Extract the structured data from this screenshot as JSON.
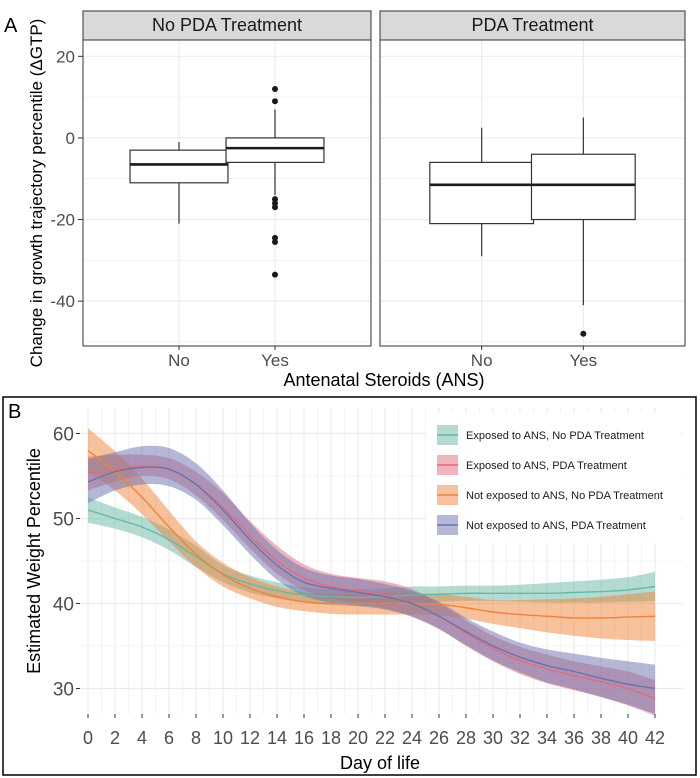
{
  "panelA": {
    "label": "A",
    "ylabel": "Change in growth trajectory percentile (ΔGTP)",
    "xlabel": "Antenatal Steroids (ANS)",
    "yticks": [
      -40,
      -20,
      0,
      20
    ],
    "ylim": [
      -51,
      24
    ],
    "facets": [
      {
        "title": "No PDA Treatment"
      },
      {
        "title": "PDA Treatment"
      }
    ]
  },
  "panelB": {
    "label": "B",
    "ylabel": "Estimated Weight Percentile",
    "xlabel": "Day of life",
    "legend_title": "",
    "legend_position": "top-right"
  },
  "colors": {
    "teal": "#67b8a5",
    "red": "#e06c7e",
    "orange": "#f0833a",
    "purple": "#6a72ad",
    "strip_bg": "#d9d9d9",
    "grid": "#ebebeb"
  },
  "chart_data": [
    {
      "type": "box",
      "title": "",
      "xlabel": "Antenatal Steroids (ANS)",
      "ylabel": "Change in growth trajectory percentile (ΔGTP)",
      "ylim": [
        -51,
        24
      ],
      "grid": true,
      "facets": [
        {
          "name": "No PDA Treatment",
          "categories": [
            "No",
            "Yes"
          ],
          "boxes": [
            {
              "min": -21,
              "q1": -11,
              "median": -6.5,
              "q3": -3,
              "max": -1,
              "outliers": []
            },
            {
              "min": -14,
              "q1": -6,
              "median": -2.5,
              "q3": 0,
              "max": 7,
              "outliers": [
                12,
                9,
                -15,
                -16,
                -17,
                -24.5,
                -25.5,
                -33.5
              ]
            }
          ]
        },
        {
          "name": "PDA Treatment",
          "categories": [
            "No",
            "Yes"
          ],
          "boxes": [
            {
              "min": -29,
              "q1": -21,
              "median": -11.5,
              "q3": -6,
              "max": 2.5,
              "outliers": []
            },
            {
              "min": -41,
              "q1": -20,
              "median": -11.5,
              "q3": -4,
              "max": 5,
              "outliers": [
                -48
              ]
            }
          ]
        }
      ]
    },
    {
      "type": "line",
      "title": "",
      "xlabel": "Day of life",
      "ylabel": "Estimated Weight Percentile",
      "xlim": [
        0,
        42
      ],
      "ylim": [
        27,
        63
      ],
      "xticks": [
        0,
        2,
        4,
        6,
        8,
        10,
        12,
        14,
        16,
        18,
        20,
        22,
        24,
        26,
        28,
        30,
        32,
        34,
        36,
        38,
        40,
        42
      ],
      "yticks": [
        30,
        40,
        50,
        60
      ],
      "grid": true,
      "legend": "top-right",
      "x": [
        0,
        2,
        4,
        6,
        8,
        10,
        12,
        14,
        16,
        18,
        20,
        22,
        24,
        26,
        28,
        30,
        32,
        34,
        36,
        38,
        40,
        42
      ],
      "series": [
        {
          "name": "Exposed to ANS, No PDA Treatment",
          "color": "#67b8a5",
          "values": [
            51,
            50,
            49,
            47.5,
            45.5,
            43.5,
            42.3,
            41.5,
            41,
            40.8,
            40.7,
            40.8,
            41,
            41.1,
            41.2,
            41.2,
            41.2,
            41.2,
            41.3,
            41.4,
            41.6,
            42
          ],
          "lower": [
            49.5,
            48.8,
            47.8,
            46.3,
            44.3,
            42.5,
            41.3,
            40.6,
            40.1,
            39.8,
            39.7,
            39.8,
            40,
            40.2,
            40.3,
            40.3,
            40.2,
            40.1,
            40.1,
            40.1,
            40.2,
            40.3
          ],
          "upper": [
            52.5,
            51.3,
            50.2,
            48.7,
            46.8,
            44.5,
            43.3,
            42.5,
            41.9,
            41.7,
            41.7,
            41.8,
            42,
            42,
            42.1,
            42.1,
            42.2,
            42.4,
            42.6,
            42.8,
            43.1,
            43.7
          ]
        },
        {
          "name": "Exposed to ANS, PDA Treatment",
          "color": "#e06c7e",
          "values": [
            55.3,
            55.8,
            56.2,
            55.8,
            54,
            51.3,
            48,
            45,
            43,
            42,
            41.5,
            41,
            40,
            38.5,
            36.5,
            34.7,
            33.3,
            32.3,
            31.5,
            30.8,
            30,
            28.8
          ],
          "lower": [
            53.3,
            54.3,
            55,
            54.6,
            52.7,
            49.8,
            46.5,
            43.5,
            41.6,
            40.6,
            40,
            39.4,
            38.4,
            37,
            35,
            33.2,
            31.7,
            30.6,
            29.8,
            29,
            28,
            26.8
          ],
          "upper": [
            57.3,
            57.5,
            57.5,
            57.1,
            55.5,
            53,
            49.7,
            46.8,
            44.6,
            43.5,
            43,
            42.6,
            41.7,
            40,
            38,
            36.2,
            34.9,
            34,
            33.2,
            32.6,
            32,
            31
          ]
        },
        {
          "name": "Not exposed to ANS, No PDA Treatment",
          "color": "#f0833a",
          "values": [
            58,
            55.5,
            52.5,
            49,
            45.8,
            43.4,
            41.8,
            40.8,
            40.2,
            40,
            40,
            40,
            40,
            39.9,
            39.5,
            39,
            38.7,
            38.5,
            38.3,
            38.3,
            38.4,
            38.5
          ],
          "lower": [
            55.5,
            53.3,
            50.5,
            47.3,
            44.3,
            42,
            40.6,
            39.6,
            39.1,
            38.8,
            38.7,
            38.7,
            38.7,
            38.6,
            38.2,
            37.6,
            37.1,
            36.6,
            36.2,
            35.9,
            35.7,
            35.6
          ],
          "upper": [
            60.6,
            57.9,
            54.7,
            50.9,
            47.3,
            44.8,
            43.1,
            42,
            41.3,
            41.1,
            41.2,
            41.3,
            41.2,
            41.1,
            40.8,
            40.4,
            40.4,
            40.5,
            40.6,
            40.8,
            41.1,
            41.4
          ]
        },
        {
          "name": "Not exposed to ANS, PDA Treatment",
          "color": "#6a72ad",
          "values": [
            54.3,
            55.5,
            56,
            55.8,
            54,
            51,
            47.5,
            44.5,
            42.5,
            41.8,
            41.3,
            40.8,
            40,
            38.5,
            36.7,
            35,
            33.7,
            32.7,
            32,
            31.2,
            30.5,
            30
          ],
          "lower": [
            51.8,
            53.3,
            54,
            53.8,
            52.2,
            49.2,
            45.8,
            42.8,
            40.9,
            40.1,
            39.7,
            39.3,
            38.5,
            37,
            35.1,
            33.3,
            31.9,
            30.7,
            29.9,
            29,
            28.1,
            27
          ],
          "upper": [
            57,
            57.8,
            58.5,
            58.3,
            56.5,
            53.3,
            49.5,
            46.3,
            44.2,
            43.3,
            42.9,
            42.3,
            41.5,
            40.2,
            38.3,
            36.7,
            35.4,
            34.6,
            34.1,
            33.6,
            33.2,
            32.8
          ]
        }
      ]
    }
  ]
}
